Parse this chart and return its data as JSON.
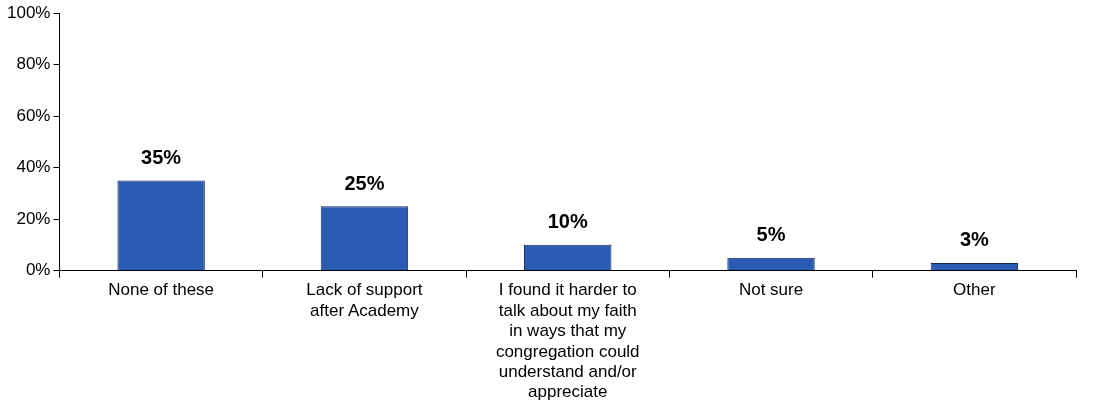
{
  "chart_data": {
    "type": "bar",
    "categories": [
      "None of these",
      "Lack of support after Academy",
      "I found it harder to talk about my faith in ways that my congregation could understand and/or appreciate",
      "Not sure",
      "Other"
    ],
    "values": [
      35,
      25,
      10,
      5,
      3
    ],
    "color": "#2a5cb4",
    "ylim": [
      0,
      100
    ],
    "yticks": [
      {
        "value": 0,
        "label": "0%"
      },
      {
        "value": 20,
        "label": "20%"
      },
      {
        "value": 40,
        "label": "40%"
      },
      {
        "value": 60,
        "label": "60%"
      },
      {
        "value": 80,
        "label": "80%"
      },
      {
        "value": 100,
        "label": "100%"
      }
    ],
    "value_labels": [
      "35%",
      "25%",
      "10%",
      "5%",
      "3%"
    ],
    "grid": false,
    "legend": false
  }
}
